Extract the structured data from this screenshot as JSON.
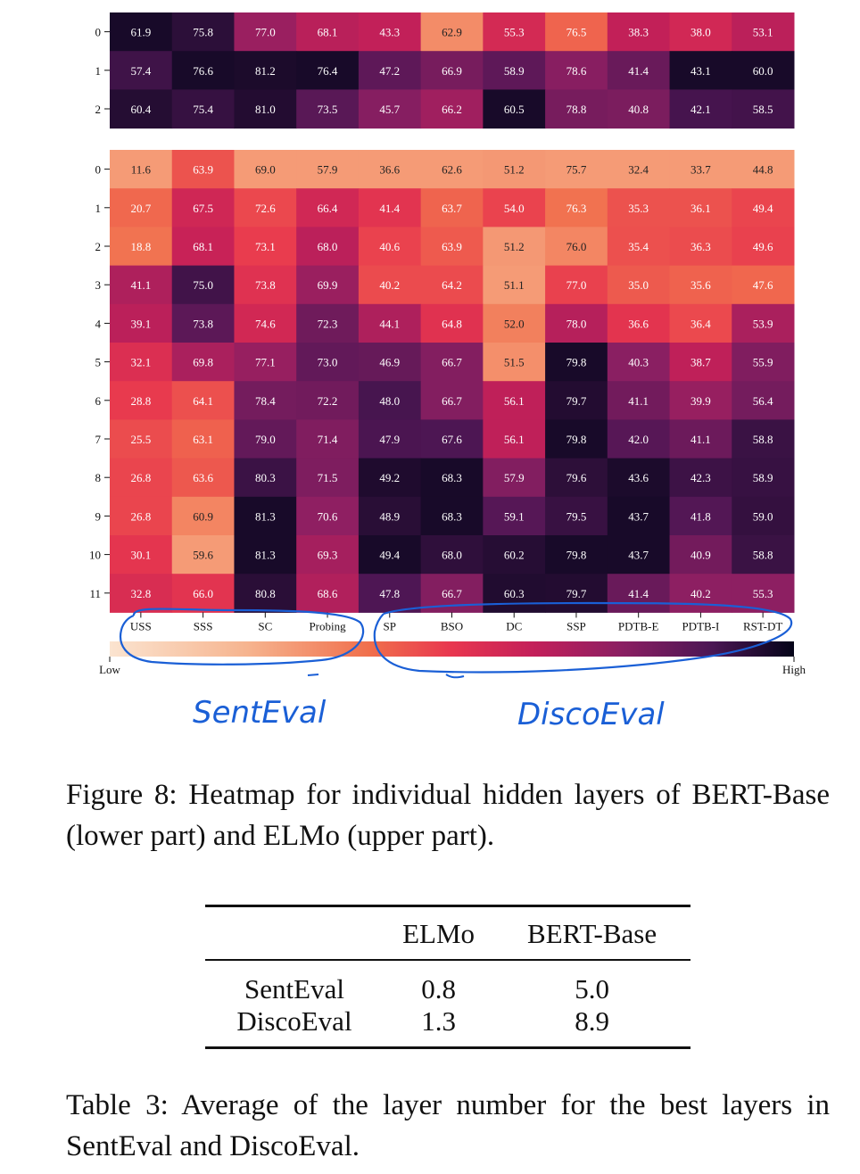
{
  "chart_data": {
    "type": "heatmap",
    "columns": [
      "USS",
      "SSS",
      "SC",
      "Probing",
      "SP",
      "BSO",
      "DC",
      "SSP",
      "PDTB-E",
      "PDTB-I",
      "RST-DT"
    ],
    "colorbar": {
      "low_label": "Low",
      "high_label": "High"
    },
    "upper": {
      "rows": [
        "0",
        "1",
        "2"
      ],
      "values": [
        [
          61.9,
          75.8,
          77.0,
          68.1,
          43.3,
          62.9,
          55.3,
          76.5,
          38.3,
          38.0,
          53.1
        ],
        [
          57.4,
          76.6,
          81.2,
          76.4,
          47.2,
          66.9,
          58.9,
          78.6,
          41.4,
          43.1,
          60.0
        ],
        [
          60.4,
          75.4,
          81.0,
          73.5,
          45.7,
          66.2,
          60.5,
          78.8,
          40.8,
          42.1,
          58.5
        ]
      ]
    },
    "lower": {
      "rows": [
        "0",
        "1",
        "2",
        "3",
        "4",
        "5",
        "6",
        "7",
        "8",
        "9",
        "10",
        "11"
      ],
      "values": [
        [
          11.6,
          63.9,
          69.0,
          57.9,
          36.6,
          62.6,
          51.2,
          75.7,
          32.4,
          33.7,
          44.8
        ],
        [
          20.7,
          67.5,
          72.6,
          66.4,
          41.4,
          63.7,
          54.0,
          76.3,
          35.3,
          36.1,
          49.4
        ],
        [
          18.8,
          68.1,
          73.1,
          68.0,
          40.6,
          63.9,
          51.2,
          76.0,
          35.4,
          36.3,
          49.6
        ],
        [
          41.1,
          75.0,
          73.8,
          69.9,
          40.2,
          64.2,
          51.1,
          77.0,
          35.0,
          35.6,
          47.6
        ],
        [
          39.1,
          73.8,
          74.6,
          72.3,
          44.1,
          64.8,
          52.0,
          78.0,
          36.6,
          36.4,
          53.9
        ],
        [
          32.1,
          69.8,
          77.1,
          73.0,
          46.9,
          66.7,
          51.5,
          79.8,
          40.3,
          38.7,
          55.9
        ],
        [
          28.8,
          64.1,
          78.4,
          72.2,
          48.0,
          66.7,
          56.1,
          79.7,
          41.1,
          39.9,
          56.4
        ],
        [
          25.5,
          63.1,
          79.0,
          71.4,
          47.9,
          67.6,
          56.1,
          79.8,
          42.0,
          41.1,
          58.8
        ],
        [
          26.8,
          63.6,
          80.3,
          71.5,
          49.2,
          68.3,
          57.9,
          79.6,
          43.6,
          42.3,
          58.9
        ],
        [
          26.8,
          60.9,
          81.3,
          70.6,
          48.9,
          68.3,
          59.1,
          79.5,
          43.7,
          41.8,
          59.0
        ],
        [
          30.1,
          59.6,
          81.3,
          69.3,
          49.4,
          68.0,
          60.2,
          79.8,
          43.7,
          40.9,
          58.8
        ],
        [
          32.8,
          66.0,
          80.8,
          68.6,
          47.8,
          66.7,
          60.3,
          79.7,
          41.4,
          40.2,
          55.3
        ]
      ]
    },
    "annotations": [
      "SentEval",
      "DiscoEval"
    ]
  },
  "figure_caption": "Figure 8:  Heatmap for individual hidden layers of BERT-Base (lower part) and ELMo (upper part).",
  "table": {
    "headers": [
      "",
      "ELMo",
      "BERT-Base"
    ],
    "rows": [
      [
        "SentEval",
        "0.8",
        "5.0"
      ],
      [
        "DiscoEval",
        "1.3",
        "8.9"
      ]
    ]
  },
  "table_caption": "Table 3: Average of the layer number for the best layers in SentEval and DiscoEval."
}
